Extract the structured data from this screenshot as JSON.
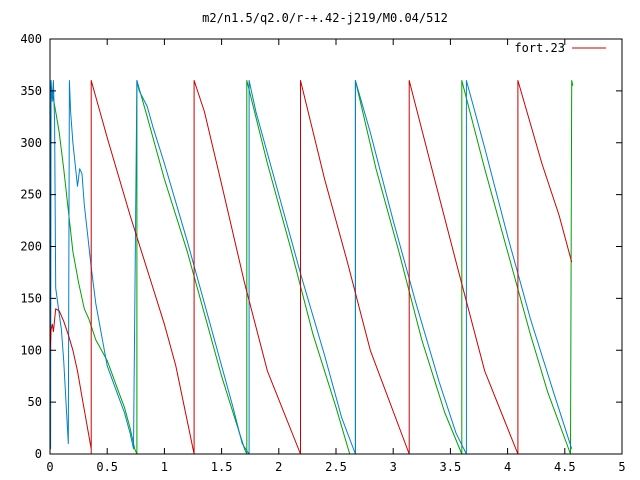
{
  "chart_data": {
    "type": "line",
    "title": "m2/n1.5/q2.0/r-+.42-j219/M0.04/512",
    "xlabel": "",
    "ylabel": "",
    "xlim": [
      0,
      5
    ],
    "ylim": [
      0,
      400
    ],
    "xticks": [
      0,
      0.5,
      1,
      1.5,
      2,
      2.5,
      3,
      3.5,
      4,
      4.5,
      5
    ],
    "xtick_labels": [
      "0",
      "0.5",
      "1",
      "1.5",
      "2",
      "2.5",
      "3",
      "3.5",
      "4",
      "4.5",
      "5"
    ],
    "yticks": [
      0,
      50,
      100,
      150,
      200,
      250,
      300,
      350,
      400
    ],
    "ytick_labels": [
      "0",
      "50",
      "100",
      "150",
      "200",
      "250",
      "300",
      "350",
      "400"
    ],
    "grid": false,
    "legend": {
      "placement": "top-right",
      "entries": [
        "fort.23"
      ]
    },
    "colors": {
      "red": "#cc0000",
      "green": "#00a000",
      "blue": "#0080d0"
    },
    "series": [
      {
        "name": "fort.23",
        "color": "#cc0000",
        "points": [
          [
            0.0,
            95
          ],
          [
            0.01,
            120
          ],
          [
            0.02,
            125
          ],
          [
            0.03,
            118
          ],
          [
            0.05,
            140
          ],
          [
            0.08,
            138
          ],
          [
            0.12,
            128
          ],
          [
            0.16,
            115
          ],
          [
            0.2,
            100
          ],
          [
            0.24,
            80
          ],
          [
            0.28,
            55
          ],
          [
            0.32,
            30
          ],
          [
            0.36,
            5
          ],
          [
            0.36,
            0
          ],
          [
            0.36,
            360
          ],
          [
            0.36,
            0
          ],
          [
            0.36,
            360
          ],
          [
            0.5,
            305
          ],
          [
            0.7,
            230
          ],
          [
            0.9,
            160
          ],
          [
            1.0,
            125
          ],
          [
            1.1,
            85
          ],
          [
            1.26,
            0
          ],
          [
            1.26,
            360
          ],
          [
            1.35,
            330
          ],
          [
            1.5,
            260
          ],
          [
            1.7,
            165
          ],
          [
            1.9,
            80
          ],
          [
            2.19,
            0
          ],
          [
            2.19,
            360
          ],
          [
            2.4,
            265
          ],
          [
            2.6,
            185
          ],
          [
            2.8,
            100
          ],
          [
            3.14,
            0
          ],
          [
            3.14,
            360
          ],
          [
            3.35,
            270
          ],
          [
            3.55,
            185
          ],
          [
            3.8,
            80
          ],
          [
            4.09,
            0
          ],
          [
            4.09,
            360
          ],
          [
            4.3,
            280
          ],
          [
            4.45,
            230
          ],
          [
            4.56,
            185
          ]
        ]
      },
      {
        "color": "#00a000",
        "points": [
          [
            0.0,
            355
          ],
          [
            0.02,
            348
          ],
          [
            0.05,
            330
          ],
          [
            0.08,
            310
          ],
          [
            0.12,
            275
          ],
          [
            0.16,
            235
          ],
          [
            0.2,
            195
          ],
          [
            0.25,
            165
          ],
          [
            0.3,
            140
          ],
          [
            0.34,
            130
          ],
          [
            0.4,
            110
          ],
          [
            0.45,
            100
          ],
          [
            0.5,
            90
          ],
          [
            0.55,
            75
          ],
          [
            0.6,
            60
          ],
          [
            0.65,
            45
          ],
          [
            0.7,
            25
          ],
          [
            0.74,
            5
          ],
          [
            0.76,
            0
          ],
          [
            0.76,
            360
          ],
          [
            0.85,
            325
          ],
          [
            1.0,
            265
          ],
          [
            1.2,
            195
          ],
          [
            1.4,
            115
          ],
          [
            1.5,
            75
          ],
          [
            1.6,
            40
          ],
          [
            1.7,
            5
          ],
          [
            1.72,
            0
          ],
          [
            1.72,
            360
          ],
          [
            1.9,
            280
          ],
          [
            2.1,
            200
          ],
          [
            2.3,
            115
          ],
          [
            2.5,
            45
          ],
          [
            2.62,
            0
          ],
          [
            2.67,
            0
          ],
          [
            2.67,
            360
          ],
          [
            2.85,
            275
          ],
          [
            3.05,
            195
          ],
          [
            3.25,
            110
          ],
          [
            3.45,
            40
          ],
          [
            3.6,
            0
          ],
          [
            3.6,
            180
          ],
          [
            3.6,
            360
          ],
          [
            3.8,
            275
          ],
          [
            4.0,
            195
          ],
          [
            4.2,
            115
          ],
          [
            4.35,
            60
          ],
          [
            4.55,
            0
          ],
          [
            4.56,
            360
          ],
          [
            4.57,
            355
          ]
        ]
      },
      {
        "color": "#0080d0",
        "points": [
          [
            0.0,
            345
          ],
          [
            0.005,
            5
          ],
          [
            0.01,
            360
          ],
          [
            0.02,
            340
          ],
          [
            0.03,
            360
          ],
          [
            0.04,
            320
          ],
          [
            0.05,
            160
          ],
          [
            0.08,
            135
          ],
          [
            0.1,
            120
          ],
          [
            0.12,
            90
          ],
          [
            0.14,
            50
          ],
          [
            0.16,
            10
          ],
          [
            0.17,
            360
          ],
          [
            0.18,
            330
          ],
          [
            0.2,
            300
          ],
          [
            0.24,
            258
          ],
          [
            0.26,
            275
          ],
          [
            0.28,
            270
          ],
          [
            0.3,
            240
          ],
          [
            0.33,
            210
          ],
          [
            0.36,
            180
          ],
          [
            0.4,
            145
          ],
          [
            0.45,
            115
          ],
          [
            0.5,
            85
          ],
          [
            0.55,
            70
          ],
          [
            0.6,
            55
          ],
          [
            0.65,
            40
          ],
          [
            0.7,
            20
          ],
          [
            0.73,
            5
          ],
          [
            0.76,
            360
          ],
          [
            0.78,
            350
          ],
          [
            0.85,
            335
          ],
          [
            0.9,
            315
          ],
          [
            1.0,
            280
          ],
          [
            1.2,
            205
          ],
          [
            1.4,
            125
          ],
          [
            1.5,
            85
          ],
          [
            1.6,
            45
          ],
          [
            1.68,
            10
          ],
          [
            1.74,
            0
          ],
          [
            1.74,
            360
          ],
          [
            1.8,
            330
          ],
          [
            2.0,
            250
          ],
          [
            2.2,
            170
          ],
          [
            2.4,
            95
          ],
          [
            2.55,
            35
          ],
          [
            2.67,
            0
          ],
          [
            2.67,
            360
          ],
          [
            2.8,
            310
          ],
          [
            3.0,
            225
          ],
          [
            3.2,
            145
          ],
          [
            3.4,
            70
          ],
          [
            3.55,
            20
          ],
          [
            3.64,
            0
          ],
          [
            3.64,
            360
          ],
          [
            3.8,
            295
          ],
          [
            4.0,
            210
          ],
          [
            4.2,
            130
          ],
          [
            4.4,
            60
          ],
          [
            4.56,
            5
          ]
        ]
      }
    ]
  }
}
